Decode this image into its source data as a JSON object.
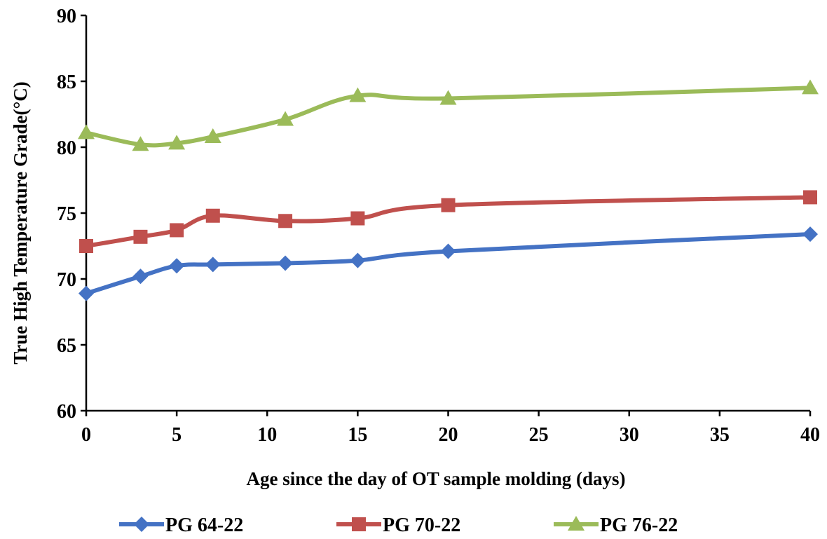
{
  "chart_data": {
    "type": "line",
    "title": "",
    "xlabel": "Age since the day of OT sample molding (days)",
    "ylabel": "True High Temperature Grade(°C)",
    "xlim": [
      0,
      40
    ],
    "ylim": [
      60,
      90
    ],
    "xticks": [
      0,
      5,
      10,
      15,
      20,
      25,
      30,
      35,
      40
    ],
    "yticks": [
      60,
      65,
      70,
      75,
      80,
      85,
      90
    ],
    "grid": false,
    "legend_position": "bottom",
    "x": [
      0,
      3,
      5,
      7,
      11,
      15,
      20,
      40
    ],
    "series": [
      {
        "name": "PG 64-22",
        "color": "#4472C4",
        "marker": "diamond",
        "values": [
          68.9,
          70.2,
          71.0,
          71.1,
          71.2,
          71.4,
          72.1,
          73.4
        ]
      },
      {
        "name": "PG 70-22",
        "color": "#C0504D",
        "marker": "square",
        "values": [
          72.5,
          73.2,
          73.7,
          74.8,
          74.4,
          74.6,
          75.6,
          76.2
        ]
      },
      {
        "name": "PG 76-22",
        "color": "#9BBB59",
        "marker": "triangle",
        "values": [
          81.1,
          80.2,
          80.3,
          80.8,
          82.1,
          83.9,
          83.7,
          84.5
        ]
      }
    ]
  }
}
